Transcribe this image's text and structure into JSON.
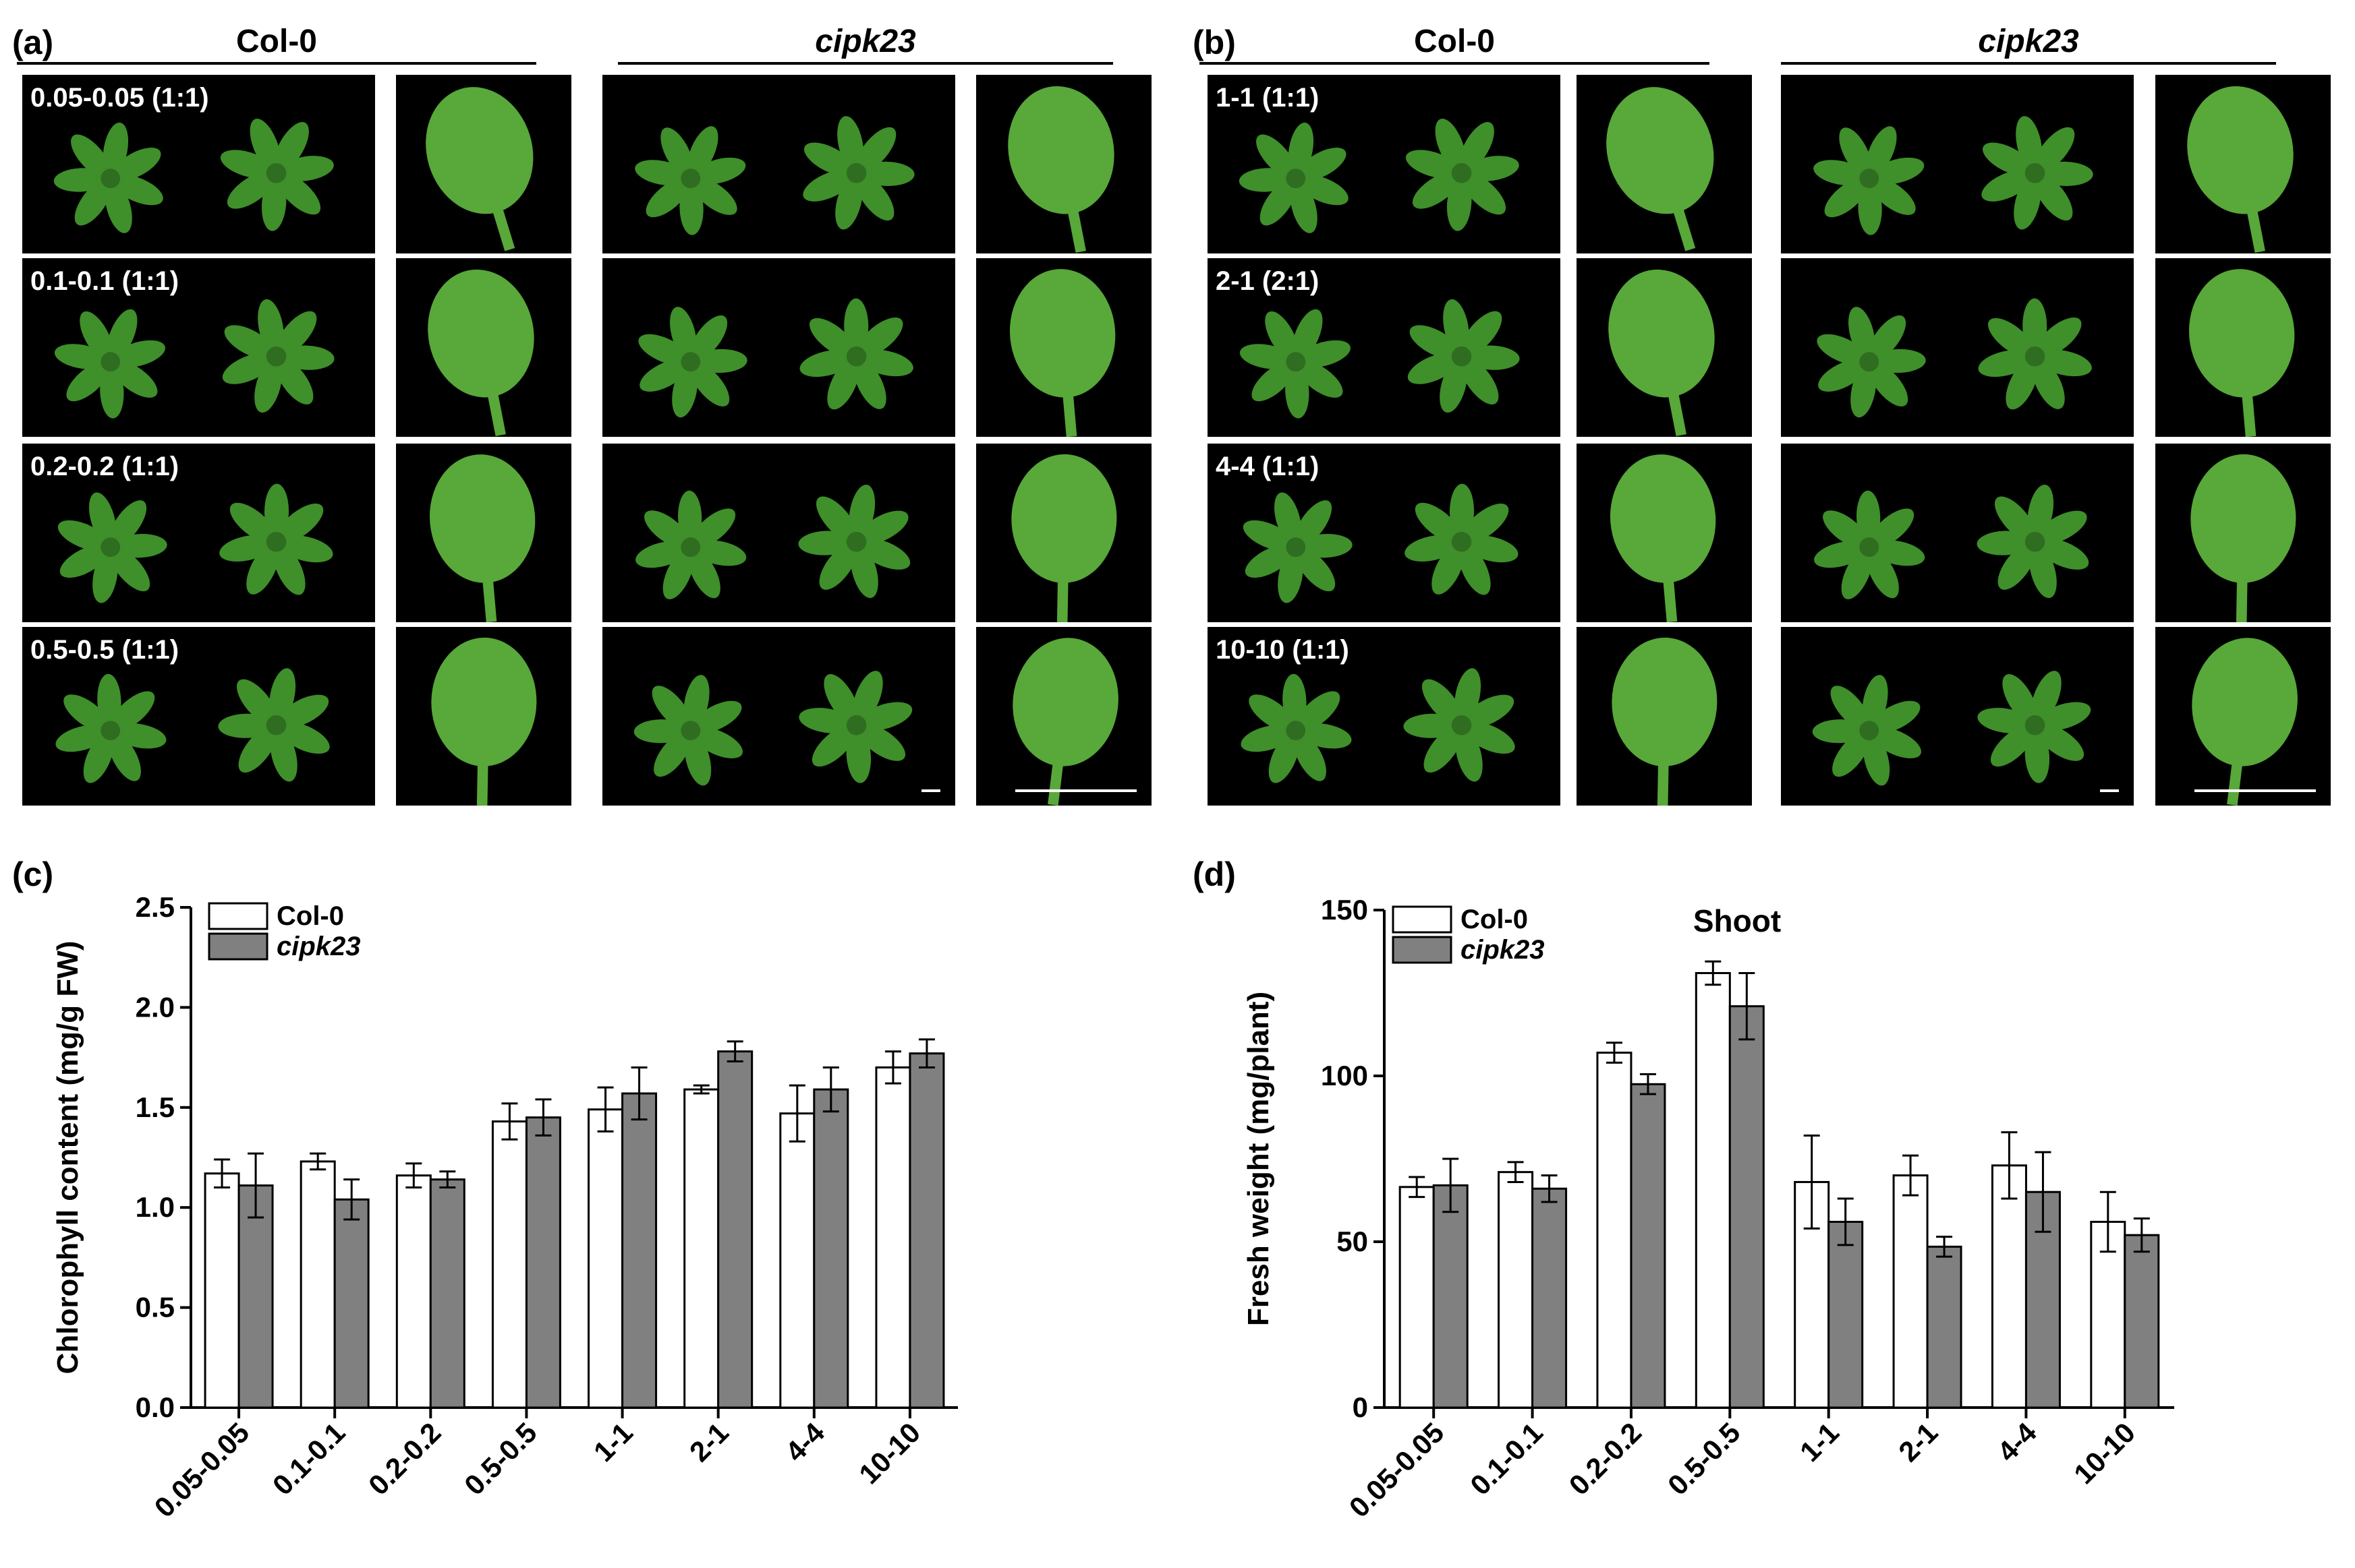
{
  "panels": {
    "a": {
      "label": "(a)",
      "genotypes": [
        {
          "name": "Col-0",
          "italic": false
        },
        {
          "name": "cipk23",
          "italic": true
        }
      ],
      "rows": [
        "0.05-0.05 (1:1)",
        "0.1-0.1 (1:1)",
        "0.2-0.2 (1:1)",
        "0.5-0.5 (1:1)"
      ]
    },
    "b": {
      "label": "(b)",
      "genotypes": [
        {
          "name": "Col-0",
          "italic": false
        },
        {
          "name": "cipk23",
          "italic": true
        }
      ],
      "rows": [
        "1-1 (1:1)",
        "2-1 (2:1)",
        "4-4 (1:1)",
        "10-10 (1:1)"
      ]
    },
    "c": {
      "label": "(c)"
    },
    "d": {
      "label": "(d)"
    }
  },
  "colors": {
    "photo_background": "#000000",
    "leaf_green": "#3f8f2b",
    "col0_bar": "#ffffff",
    "cipk23_bar": "#808080"
  },
  "chart_data": [
    {
      "id": "c",
      "type": "bar",
      "title": "",
      "ylabel": "Chlorophyll content (mg/g FW)",
      "xlabel": "",
      "ylim": [
        0,
        2.5
      ],
      "yticks": [
        0.0,
        0.5,
        1.0,
        1.5,
        2.0,
        2.5
      ],
      "ytick_labels": [
        "0.0",
        "0.5",
        "1.0",
        "1.5",
        "2.0",
        "2.5"
      ],
      "categories": [
        "0.05-0.05",
        "0.1-0.1",
        "0.2-0.2",
        "0.5-0.5",
        "1-1",
        "2-1",
        "4-4",
        "10-10"
      ],
      "legend_position": "top-left",
      "series": [
        {
          "name": "Col-0",
          "italic": false,
          "color": "#ffffff",
          "values": [
            1.17,
            1.23,
            1.16,
            1.43,
            1.49,
            1.59,
            1.47,
            1.7
          ],
          "errors": [
            0.07,
            0.04,
            0.06,
            0.09,
            0.11,
            0.02,
            0.14,
            0.08
          ]
        },
        {
          "name": "cipk23",
          "italic": true,
          "color": "#808080",
          "values": [
            1.11,
            1.04,
            1.14,
            1.45,
            1.57,
            1.78,
            1.59,
            1.77
          ],
          "errors": [
            0.16,
            0.1,
            0.04,
            0.09,
            0.13,
            0.05,
            0.11,
            0.07
          ]
        }
      ]
    },
    {
      "id": "d",
      "type": "bar",
      "title": "Shoot",
      "ylabel": "Fresh weight (mg/plant)",
      "xlabel": "",
      "ylim": [
        0,
        150
      ],
      "yticks": [
        0,
        50,
        100,
        150
      ],
      "ytick_labels": [
        "0",
        "50",
        "100",
        "150"
      ],
      "categories": [
        "0.05-0.05",
        "0.1-0.1",
        "0.2-0.2",
        "0.5-0.5",
        "1-1",
        "2-1",
        "4-4",
        "10-10"
      ],
      "legend_position": "top-left",
      "series": [
        {
          "name": "Col-0",
          "italic": false,
          "color": "#ffffff",
          "values": [
            66.5,
            71.0,
            107.0,
            131.0,
            68.0,
            70.0,
            73.0,
            56.0
          ],
          "errors": [
            3.0,
            3.0,
            3.0,
            3.5,
            14.0,
            6.0,
            10.0,
            9.0
          ]
        },
        {
          "name": "cipk23",
          "italic": true,
          "color": "#808080",
          "values": [
            67.0,
            66.0,
            97.5,
            121.0,
            56.0,
            48.5,
            65.0,
            52.0
          ],
          "errors": [
            8.0,
            4.0,
            3.0,
            10.0,
            7.0,
            3.0,
            12.0,
            5.0
          ]
        }
      ]
    }
  ]
}
